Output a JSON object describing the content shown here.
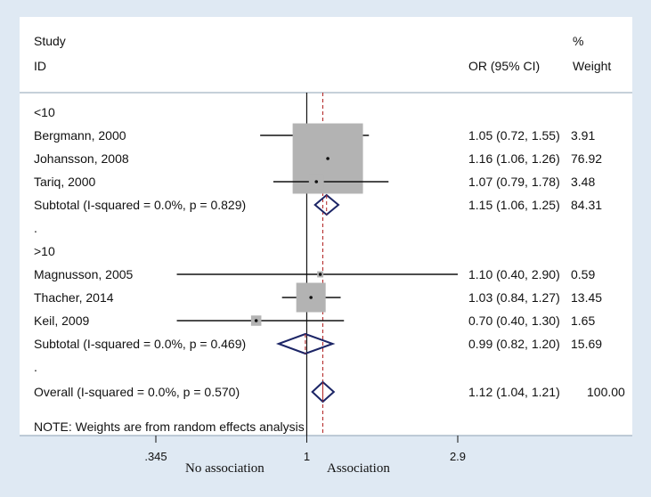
{
  "chart_data": {
    "type": "forest",
    "header": {
      "study_label": "Study",
      "id_label": "ID",
      "or_label": "OR (95% CI)",
      "pct_label": "%",
      "weight_label": "Weight"
    },
    "rows": [
      {
        "kind": "group",
        "label": "<10"
      },
      {
        "kind": "study",
        "label": "Bergmann, 2000",
        "or": 1.05,
        "lo": 0.72,
        "hi": 1.55,
        "weight": 3.91,
        "text": "1.05 (0.72, 1.55)",
        "weight_text": "3.91"
      },
      {
        "kind": "study",
        "label": "Johansson, 2008",
        "or": 1.16,
        "lo": 1.06,
        "hi": 1.26,
        "weight": 76.92,
        "text": "1.16 (1.06, 1.26)",
        "weight_text": "76.92"
      },
      {
        "kind": "study",
        "label": "Tariq, 2000",
        "or": 1.07,
        "lo": 0.79,
        "hi": 1.78,
        "weight": 3.48,
        "text": "1.07 (0.79, 1.78)",
        "weight_text": "3.48"
      },
      {
        "kind": "subtotal",
        "label": "Subtotal  (I-squared = 0.0%, p = 0.829)",
        "or": 1.15,
        "lo": 1.06,
        "hi": 1.25,
        "weight": 84.31,
        "text": "1.15 (1.06, 1.25)",
        "weight_text": "84.31"
      },
      {
        "kind": "spacer",
        "label": "."
      },
      {
        "kind": "group",
        "label": ">10"
      },
      {
        "kind": "study",
        "label": "Magnusson, 2005",
        "or": 1.1,
        "lo": 0.4,
        "hi": 2.9,
        "weight": 0.59,
        "text": "1.10 (0.40, 2.90)",
        "weight_text": "0.59"
      },
      {
        "kind": "study",
        "label": "Thacher, 2014",
        "or": 1.03,
        "lo": 0.84,
        "hi": 1.27,
        "weight": 13.45,
        "text": "1.03 (0.84, 1.27)",
        "weight_text": "13.45"
      },
      {
        "kind": "study",
        "label": "Keil, 2009",
        "or": 0.7,
        "lo": 0.4,
        "hi": 1.3,
        "weight": 1.65,
        "text": "0.70 (0.40, 1.30)",
        "weight_text": "1.65"
      },
      {
        "kind": "subtotal",
        "label": "Subtotal  (I-squared = 0.0%, p = 0.469)",
        "or": 0.99,
        "lo": 0.82,
        "hi": 1.2,
        "weight": 15.69,
        "text": "0.99 (0.82, 1.20)",
        "weight_text": "15.69"
      },
      {
        "kind": "spacer",
        "label": "."
      },
      {
        "kind": "overall",
        "label": "Overall  (I-squared = 0.0%, p = 0.570)",
        "or": 1.12,
        "lo": 1.04,
        "hi": 1.21,
        "weight": 100.0,
        "text": "1.12 (1.04, 1.21)",
        "weight_text": "100.00"
      }
    ],
    "note": "NOTE: Weights are from random effects analysis",
    "x_scale": "log",
    "xlim": [
      0.345,
      2.9
    ],
    "null_value": 1,
    "overall_value": 1.12,
    "ticks": [
      {
        "value": 0.345,
        "label": ".345"
      },
      {
        "value": 1,
        "label": "1"
      },
      {
        "value": 2.9,
        "label": "2.9"
      }
    ],
    "annotations": {
      "left": "No association",
      "right": "Association"
    },
    "colors": {
      "background": "#dfe9f3",
      "panel": "#ffffff",
      "frame": "#7a8ea3",
      "box": "#b3b3b3",
      "diamond": "#1c2566",
      "ref_line": "#b22222",
      "text": "#111111"
    }
  }
}
